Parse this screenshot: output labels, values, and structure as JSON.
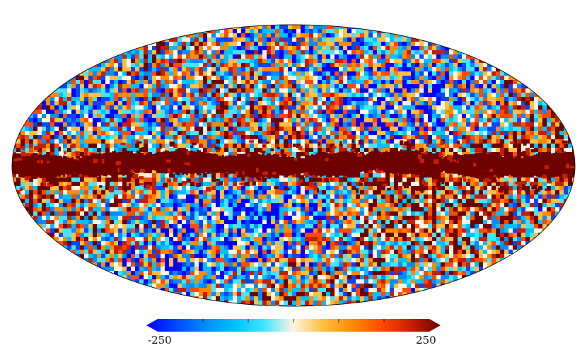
{
  "colorbar": {
    "min_label": "-250",
    "max_label": "250",
    "colors": [
      "#0000ff",
      "#0047ff",
      "#008dff",
      "#00c0ff",
      "#42e4ff",
      "#fff4e0",
      "#ffbf40",
      "#ff8a00",
      "#ff4a00",
      "#c81e00",
      "#6e0000"
    ],
    "range": [
      -250,
      250
    ]
  },
  "map": {
    "projection": "mollweide",
    "outline_color": "#111111",
    "band_color": "#6e0000"
  }
}
